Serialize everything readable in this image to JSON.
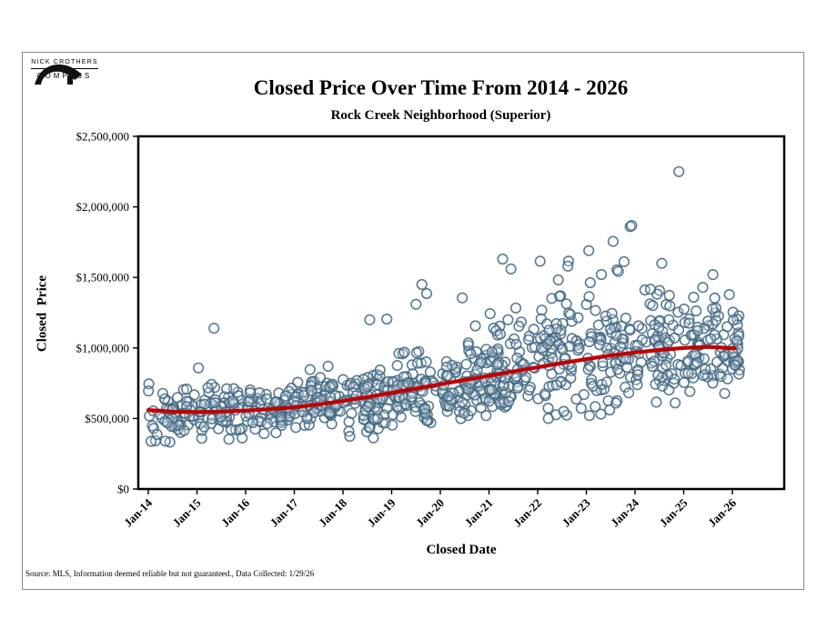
{
  "logo": {
    "name": "NICK CROTHERS",
    "brand": "COMPASS"
  },
  "header": {
    "title": "Closed Price Over Time From 2014 - 2026",
    "subtitle": "Rock Creek Neighborhood (Superior)"
  },
  "axes": {
    "y_title": "Closed  Price",
    "x_title": "Closed Date"
  },
  "footer": {
    "source": "Source: MLS, Information deemed reliable but not guaranteed., Data Collected: 1/29/26"
  },
  "chart_data": {
    "type": "scatter",
    "title": "Closed Price Over Time From 2014 - 2026",
    "subtitle": "Rock Creek Neighborhood (Superior)",
    "xlabel": "Closed Date",
    "ylabel": "Closed Price",
    "grid": false,
    "legend": "none",
    "ylim": [
      0,
      2500000
    ],
    "xlim": [
      2014,
      2026.3
    ],
    "y_ticks": [
      "$0",
      "$500,000",
      "$1,000,000",
      "$1,500,000",
      "$2,000,000",
      "$2,500,000"
    ],
    "y_tick_values": [
      0,
      500000,
      1000000,
      1500000,
      2000000,
      2500000
    ],
    "x_ticks": [
      "Jan-14",
      "Jan-15",
      "Jan-16",
      "Jan-17",
      "Jan-18",
      "Jan-19",
      "Jan-20",
      "Jan-21",
      "Jan-22",
      "Jan-23",
      "Jan-24",
      "Jan-25",
      "Jan-26"
    ],
    "x_tick_values": [
      2014,
      2015,
      2016,
      2017,
      2018,
      2019,
      2020,
      2021,
      2022,
      2023,
      2024,
      2025,
      2026
    ],
    "point_style": {
      "stroke": "#3f6580",
      "fill": "#e9eff5",
      "fill_opacity": 0.25,
      "radius": 5.3,
      "stroke_width": 1.6
    },
    "trend_style": {
      "color": "#c00000",
      "width": 4.2
    },
    "trend": {
      "x": [
        2014.0,
        2014.5,
        2015.0,
        2015.5,
        2016.0,
        2016.5,
        2017.0,
        2017.5,
        2018.0,
        2018.5,
        2019.0,
        2019.5,
        2020.0,
        2020.5,
        2021.0,
        2021.5,
        2022.0,
        2022.5,
        2023.0,
        2023.5,
        2024.0,
        2024.5,
        2025.0,
        2025.5,
        2026.05
      ],
      "y": [
        560000,
        548000,
        545000,
        549000,
        556000,
        566000,
        580000,
        600000,
        624000,
        652000,
        682000,
        712000,
        743000,
        773000,
        803000,
        833000,
        863000,
        893000,
        921000,
        947000,
        968000,
        986000,
        1000000,
        1008000,
        998000
      ]
    },
    "scatter_clusters": [
      {
        "year": 2014.0,
        "span": 0.95,
        "count": 55,
        "mean": 500000,
        "sd": 105000,
        "min": 330000,
        "max": 800000
      },
      {
        "year": 2015.0,
        "span": 0.95,
        "count": 62,
        "mean": 555000,
        "sd": 125000,
        "min": 350000,
        "max": 960000
      },
      {
        "year": 2016.0,
        "span": 0.95,
        "count": 65,
        "mean": 560000,
        "sd": 105000,
        "min": 390000,
        "max": 900000
      },
      {
        "year": 2017.0,
        "span": 0.95,
        "count": 70,
        "mean": 600000,
        "sd": 105000,
        "min": 430000,
        "max": 950000
      },
      {
        "year": 2018.0,
        "span": 0.95,
        "count": 74,
        "mean": 645000,
        "sd": 135000,
        "min": 360000,
        "max": 1060000
      },
      {
        "year": 2019.0,
        "span": 0.95,
        "count": 76,
        "mean": 700000,
        "sd": 145000,
        "min": 450000,
        "max": 1230000
      },
      {
        "year": 2020.0,
        "span": 0.95,
        "count": 80,
        "mean": 740000,
        "sd": 145000,
        "min": 470000,
        "max": 1260000
      },
      {
        "year": 2021.0,
        "span": 0.95,
        "count": 85,
        "mean": 820000,
        "sd": 175000,
        "min": 500000,
        "max": 1420000
      },
      {
        "year": 2022.0,
        "span": 0.95,
        "count": 76,
        "mean": 945000,
        "sd": 225000,
        "min": 500000,
        "max": 1620000
      },
      {
        "year": 2023.0,
        "span": 0.95,
        "count": 76,
        "mean": 950000,
        "sd": 235000,
        "min": 520000,
        "max": 1760000
      },
      {
        "year": 2024.0,
        "span": 0.95,
        "count": 72,
        "mean": 980000,
        "sd": 225000,
        "min": 600000,
        "max": 1730000
      },
      {
        "year": 2025.0,
        "span": 0.95,
        "count": 70,
        "mean": 1000000,
        "sd": 210000,
        "min": 620000,
        "max": 1560000
      },
      {
        "year": 2026.0,
        "span": 0.15,
        "count": 26,
        "mean": 1050000,
        "sd": 170000,
        "min": 780000,
        "max": 1430000
      }
    ],
    "outliers": [
      [
        2015.35,
        1140000
      ],
      [
        2018.55,
        1200000
      ],
      [
        2018.9,
        1205000
      ],
      [
        2019.5,
        1310000
      ],
      [
        2019.62,
        1450000
      ],
      [
        2019.72,
        1385000
      ],
      [
        2020.45,
        1355000
      ],
      [
        2021.28,
        1630000
      ],
      [
        2021.45,
        1560000
      ],
      [
        2022.05,
        1615000
      ],
      [
        2022.62,
        1580000
      ],
      [
        2023.05,
        1690000
      ],
      [
        2023.55,
        1755000
      ],
      [
        2023.9,
        1860000
      ],
      [
        2023.93,
        1868000
      ],
      [
        2024.55,
        1600000
      ],
      [
        2024.9,
        2250000
      ],
      [
        2025.6,
        1520000
      ]
    ],
    "seed": 7
  }
}
